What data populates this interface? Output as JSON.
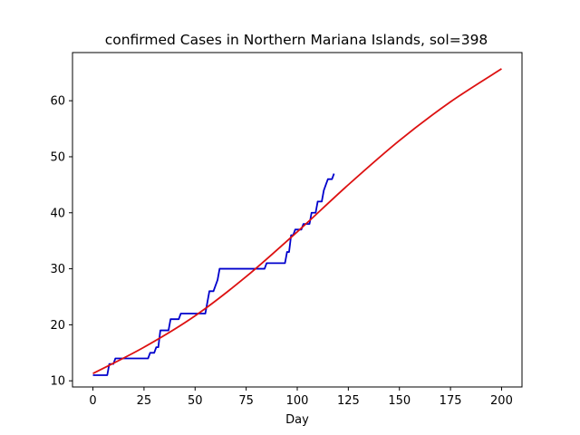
{
  "chart_data": {
    "type": "line",
    "title": "confirmed Cases in Northern Mariana Islands, sol=398",
    "xlabel": "Day",
    "ylabel": "",
    "xlim": [
      -10,
      210
    ],
    "ylim": [
      8.9,
      68.6
    ],
    "xticks": [
      0,
      25,
      50,
      75,
      100,
      125,
      150,
      175,
      200
    ],
    "yticks": [
      10,
      20,
      30,
      40,
      50,
      60
    ],
    "grid": false,
    "series": [
      {
        "color": "#0000cc",
        "style": "step",
        "points": [
          [
            0,
            11
          ],
          [
            7,
            11
          ],
          [
            8,
            13
          ],
          [
            10,
            13
          ],
          [
            11,
            14
          ],
          [
            27,
            14
          ],
          [
            28,
            15
          ],
          [
            30,
            15
          ],
          [
            31,
            16
          ],
          [
            32,
            16
          ],
          [
            33,
            19
          ],
          [
            37,
            19
          ],
          [
            38,
            21
          ],
          [
            42,
            21
          ],
          [
            43,
            22
          ],
          [
            55,
            22
          ],
          [
            56,
            24
          ],
          [
            57,
            26
          ],
          [
            59,
            26
          ],
          [
            61,
            28
          ],
          [
            62,
            30
          ],
          [
            84,
            30
          ],
          [
            85,
            31
          ],
          [
            94,
            31
          ],
          [
            95,
            33
          ],
          [
            96,
            33
          ],
          [
            97,
            36
          ],
          [
            98,
            36
          ],
          [
            99,
            37
          ],
          [
            102,
            37
          ],
          [
            103,
            38
          ],
          [
            106,
            38
          ],
          [
            107,
            40
          ],
          [
            109,
            40
          ],
          [
            110,
            42
          ],
          [
            112,
            42
          ],
          [
            113,
            44
          ],
          [
            114,
            45
          ],
          [
            115,
            46
          ],
          [
            117,
            46
          ],
          [
            118,
            47
          ]
        ]
      },
      {
        "color": "#dd1111",
        "style": "smooth",
        "points": [
          [
            0,
            11.3
          ],
          [
            25,
            16.0
          ],
          [
            50,
            21.6
          ],
          [
            75,
            28.6
          ],
          [
            100,
            36.6
          ],
          [
            125,
            45.0
          ],
          [
            150,
            52.9
          ],
          [
            175,
            59.8
          ],
          [
            200,
            65.7
          ]
        ]
      }
    ]
  }
}
